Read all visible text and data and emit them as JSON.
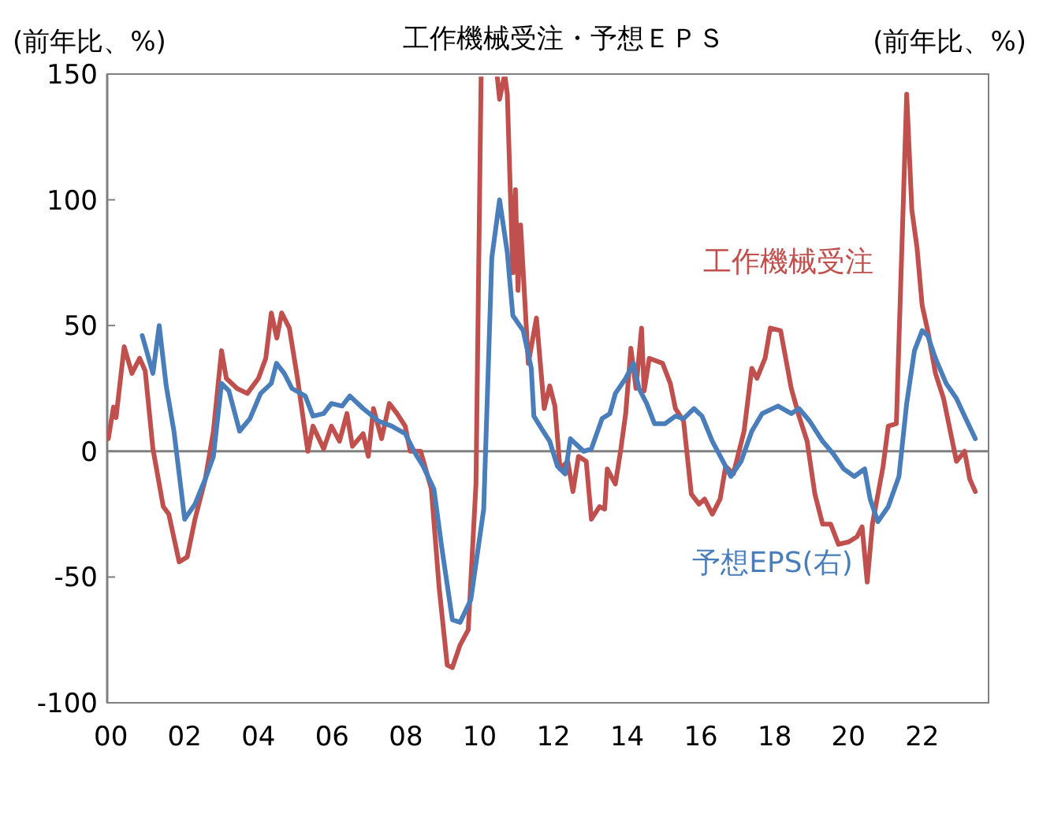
{
  "chart_data": {
    "type": "line",
    "title": "工作機械受注・予想ＥＰＳ",
    "ylabel": "(前年比、%)",
    "y2label": "(前年比、%)",
    "xlim": [
      1999.9,
      2023.8
    ],
    "xticks": [
      {
        "value": 2000,
        "label": "00"
      },
      {
        "value": 2002,
        "label": "02"
      },
      {
        "value": 2004,
        "label": "04"
      },
      {
        "value": 2006,
        "label": "06"
      },
      {
        "value": 2008,
        "label": "08"
      },
      {
        "value": 2010,
        "label": "10"
      },
      {
        "value": 2012,
        "label": "12"
      },
      {
        "value": 2014,
        "label": "14"
      },
      {
        "value": 2016,
        "label": "16"
      },
      {
        "value": 2018,
        "label": "18"
      },
      {
        "value": 2020,
        "label": "20"
      },
      {
        "value": 2022,
        "label": "22"
      }
    ],
    "ylim": [
      -100,
      150
    ],
    "yticks": [
      -100,
      -50,
      0,
      50,
      100,
      150
    ],
    "grid": false,
    "marker": "none",
    "line_style": "solid",
    "ref_lines": [
      {
        "axis": "y",
        "value": 0,
        "color": "#808080"
      }
    ],
    "series": [
      {
        "name": "工作機械受注",
        "color": "#c0504d",
        "x": [
          1999.93,
          2000.07,
          2000.14,
          2000.36,
          2000.57,
          2000.78,
          2000.93,
          2001.14,
          2001.42,
          2001.57,
          2001.85,
          2002.07,
          2002.28,
          2002.56,
          2002.78,
          2003.0,
          2003.13,
          2003.42,
          2003.7,
          2004.0,
          2004.2,
          2004.35,
          2004.5,
          2004.63,
          2004.84,
          2005.06,
          2005.34,
          2005.48,
          2005.77,
          2005.98,
          2006.2,
          2006.4,
          2006.55,
          2006.84,
          2006.98,
          2007.12,
          2007.34,
          2007.55,
          2007.76,
          2007.98,
          2008.12,
          2008.4,
          2008.69,
          2008.9,
          2009.12,
          2009.26,
          2009.47,
          2009.69,
          2009.9,
          2010.04,
          2010.47,
          2010.54,
          2010.68,
          2010.75,
          2010.9,
          2010.97,
          2011.04,
          2011.11,
          2011.32,
          2011.54,
          2011.75,
          2011.9,
          2012.04,
          2012.18,
          2012.39,
          2012.53,
          2012.68,
          2012.89,
          2013.03,
          2013.25,
          2013.39,
          2013.46,
          2013.68,
          2013.82,
          2013.96,
          2014.1,
          2014.24,
          2014.39,
          2014.46,
          2014.6,
          2014.96,
          2015.17,
          2015.31,
          2015.53,
          2015.74,
          2015.95,
          2016.1,
          2016.31,
          2016.52,
          2016.67,
          2016.88,
          2017.17,
          2017.38,
          2017.52,
          2017.74,
          2017.88,
          2018.16,
          2018.45,
          2018.66,
          2018.88,
          2019.09,
          2019.3,
          2019.52,
          2019.73,
          2020.01,
          2020.23,
          2020.37,
          2020.51,
          2020.65,
          2020.94,
          2021.08,
          2021.3,
          2021.58,
          2021.72,
          2021.86,
          2022.0,
          2022.15,
          2022.36,
          2022.58,
          2022.79,
          2022.93,
          2023.15,
          2023.29,
          2023.44
        ],
        "values": [
          5,
          17.6,
          13.4,
          41.6,
          31,
          37,
          32,
          1,
          -22,
          -25,
          -44,
          -42,
          -27,
          -11,
          8,
          40,
          29,
          25,
          23,
          29,
          37,
          55,
          45,
          55,
          49,
          29,
          0,
          10,
          1,
          10,
          4,
          15,
          2,
          7,
          -2,
          17,
          5,
          19,
          15,
          10,
          0,
          0,
          -15,
          -54,
          -85,
          -86,
          -77,
          -71,
          -13,
          150,
          150,
          140,
          150,
          142,
          71,
          104,
          64,
          90,
          35,
          53,
          17,
          26,
          18,
          -7,
          -4,
          -16,
          -2,
          -4,
          -27,
          -22,
          -23,
          -7,
          -13,
          0,
          15,
          41,
          25,
          49,
          24,
          37,
          35,
          27,
          17,
          12,
          -17,
          -21,
          -19,
          -25,
          -19,
          -6,
          -9,
          8,
          33,
          29,
          37,
          49,
          48,
          25,
          14,
          4,
          -17,
          -29,
          -29,
          -37,
          -36,
          -34,
          -30,
          -52,
          -29,
          -6,
          10,
          11,
          142,
          96,
          81,
          58,
          48,
          31,
          21,
          6,
          -4,
          0,
          -11,
          -16
        ]
      },
      {
        "name": "予想EPS(右)",
        "color": "#4a7ebb",
        "x": [
          2000.85,
          2001.14,
          2001.31,
          2001.5,
          2001.71,
          2002.0,
          2002.28,
          2002.56,
          2002.78,
          2003.0,
          2003.2,
          2003.49,
          2003.77,
          2004.06,
          2004.35,
          2004.49,
          2004.7,
          2004.91,
          2005.27,
          2005.48,
          2005.77,
          2005.98,
          2006.27,
          2006.48,
          2006.84,
          2007.26,
          2007.62,
          2007.98,
          2008.26,
          2008.47,
          2008.76,
          2008.97,
          2009.26,
          2009.47,
          2009.76,
          2010.11,
          2010.33,
          2010.54,
          2010.75,
          2010.9,
          2011.18,
          2011.4,
          2011.47,
          2011.68,
          2011.9,
          2012.11,
          2012.32,
          2012.46,
          2012.82,
          2013.03,
          2013.32,
          2013.53,
          2013.68,
          2013.96,
          2014.17,
          2014.32,
          2014.53,
          2014.74,
          2015.03,
          2015.31,
          2015.53,
          2015.81,
          2016.03,
          2016.31,
          2016.6,
          2016.81,
          2017.09,
          2017.38,
          2017.66,
          2018.09,
          2018.45,
          2018.66,
          2018.95,
          2019.3,
          2019.59,
          2019.87,
          2020.16,
          2020.44,
          2020.59,
          2020.8,
          2021.08,
          2021.37,
          2021.58,
          2021.79,
          2022.0,
          2022.15,
          2022.36,
          2022.65,
          2022.93,
          2023.15,
          2023.44
        ],
        "values": [
          46,
          31,
          50,
          26,
          8,
          -27,
          -21,
          -11,
          -2,
          27,
          24,
          8,
          13,
          23,
          27,
          35,
          31,
          25,
          22,
          14,
          15,
          19,
          18,
          22,
          17,
          12,
          10,
          7,
          -1,
          -6,
          -15,
          -38,
          -67,
          -68,
          -59,
          -23,
          77,
          100,
          79,
          54,
          48,
          33,
          14,
          9,
          4,
          -6,
          -9,
          5,
          0,
          1,
          13,
          15,
          23,
          29,
          35,
          25,
          19,
          11,
          11,
          14,
          13,
          17,
          14,
          4,
          -4,
          -10,
          -4,
          8,
          15,
          18,
          15,
          17,
          12,
          4,
          -1,
          -7,
          -10,
          -7,
          -19,
          -28,
          -22,
          -10,
          19,
          40,
          48,
          46,
          37,
          27,
          21,
          14,
          5
        ]
      }
    ]
  }
}
